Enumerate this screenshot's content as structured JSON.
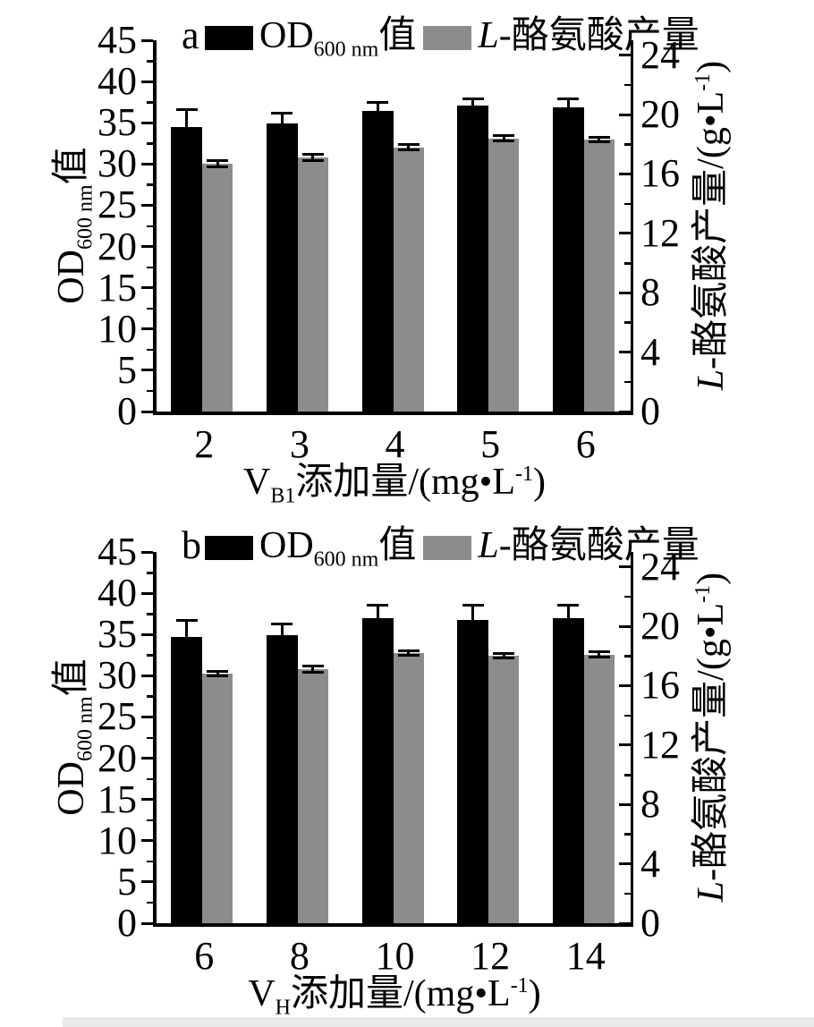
{
  "figure": {
    "background": "#ffffff",
    "bar_colors": {
      "od": "#000000",
      "tyrosine": "#8c8c8c"
    },
    "axis_color": "#000000"
  },
  "chart_data": [
    {
      "type": "bar",
      "panel_label": "a",
      "legend": {
        "od": {
          "main": "OD",
          "sub": "600 nm",
          "suffix": "值"
        },
        "tyr": {
          "italic": "L",
          "text": "-酪氨酸产量"
        }
      },
      "x_axis": {
        "title": {
          "main": "V",
          "sub": "B1",
          "text": "添加量/(mg•L",
          "sup": "-1",
          "close": ")"
        },
        "categories": [
          "2",
          "3",
          "4",
          "5",
          "6"
        ]
      },
      "left_axis": {
        "title": {
          "main": "OD",
          "sub": "600 nm",
          "suffix": "值"
        },
        "range": [
          0,
          45
        ],
        "tick_labels": [
          "0",
          "5",
          "10",
          "15",
          "20",
          "25",
          "30",
          "35",
          "40",
          "45"
        ],
        "minor_step": 2.5
      },
      "right_axis": {
        "title": {
          "italic": "L",
          "text": "-酪氨酸产量/(g•L",
          "sup": "-1",
          "close": ")"
        },
        "range": [
          0,
          25
        ],
        "tick_labels": [
          "0",
          "4",
          "8",
          "12",
          "16",
          "20",
          "24"
        ],
        "minor_step": 2
      },
      "series": [
        {
          "name": "OD600nm值",
          "axis": "left",
          "color": "#000000",
          "values": [
            34.5,
            34.9,
            36.4,
            37.1,
            36.9
          ],
          "errors": [
            2.1,
            1.3,
            1.1,
            0.8,
            1.0
          ]
        },
        {
          "name": "L-酪氨酸产量",
          "axis": "right",
          "color": "#8c8c8c",
          "values": [
            16.7,
            17.1,
            17.8,
            18.4,
            18.3
          ],
          "errors": [
            0.2,
            0.2,
            0.2,
            0.17,
            0.15
          ]
        }
      ]
    },
    {
      "type": "bar",
      "panel_label": "b",
      "legend": {
        "od": {
          "main": "OD",
          "sub": "600 nm",
          "suffix": "值"
        },
        "tyr": {
          "italic": "L",
          "text": "-酪氨酸产量"
        }
      },
      "x_axis": {
        "title": {
          "main": "V",
          "sub": "H",
          "text": "添加量/(mg•L",
          "sup": "-1",
          "close": ")"
        },
        "categories": [
          "6",
          "8",
          "10",
          "12",
          "14"
        ]
      },
      "left_axis": {
        "title": {
          "main": "OD",
          "sub": "600 nm",
          "suffix": "值"
        },
        "range": [
          0,
          45
        ],
        "tick_labels": [
          "0",
          "5",
          "10",
          "15",
          "20",
          "25",
          "30",
          "35",
          "40",
          "45"
        ],
        "minor_step": 2.5
      },
      "right_axis": {
        "title": {
          "italic": "L",
          "text": "-酪氨酸产量/(g•L",
          "sup": "-1",
          "close": ")"
        },
        "range": [
          0,
          25
        ],
        "tick_labels": [
          "0",
          "4",
          "8",
          "12",
          "16",
          "20",
          "24"
        ],
        "minor_step": 2
      },
      "series": [
        {
          "name": "OD600nm值",
          "axis": "left",
          "color": "#000000",
          "values": [
            34.7,
            34.9,
            37.0,
            36.8,
            37.0
          ],
          "errors": [
            2.0,
            1.4,
            1.6,
            1.7,
            1.5
          ]
        },
        {
          "name": "L-酪氨酸产量",
          "axis": "right",
          "color": "#8c8c8c",
          "values": [
            16.8,
            17.1,
            18.2,
            18.0,
            18.1
          ],
          "errors": [
            0.15,
            0.2,
            0.15,
            0.16,
            0.16
          ]
        }
      ]
    }
  ]
}
